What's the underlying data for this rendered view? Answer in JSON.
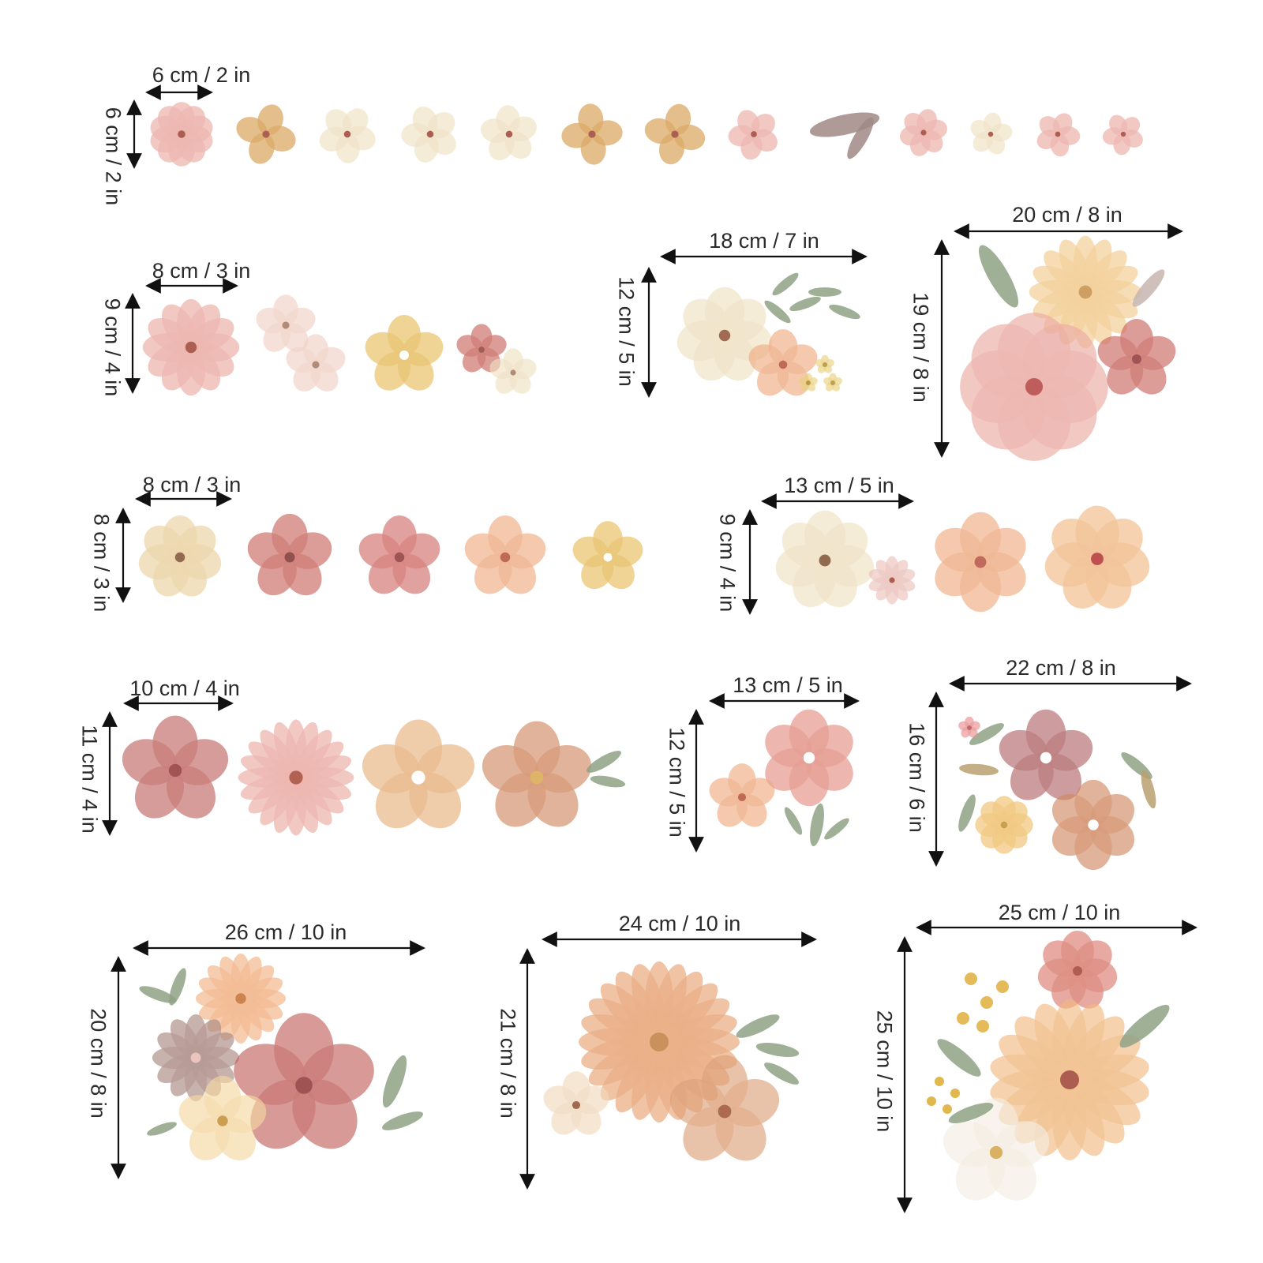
{
  "colors": {
    "text": "#2a2a2a",
    "blush": "#eba9a2",
    "rose": "#c8645e",
    "mustard": "#d59a4a",
    "cream": "#eee0c0",
    "peach": "#eeaa80",
    "terracotta": "#d08860",
    "sage": "#8fa285",
    "yellow": "#e5bb5a"
  },
  "dimensions": [
    {
      "width": "6 cm / 2 in",
      "height": "6 cm / 2 in"
    },
    {
      "width": "8 cm / 3 in",
      "height": "9 cm / 4 in"
    },
    {
      "width": "18 cm / 7 in",
      "height": "12 cm / 5 in"
    },
    {
      "width": "20 cm / 8 in",
      "height": "19 cm / 8 in"
    },
    {
      "width": "8 cm / 3 in",
      "height": "8 cm / 3 in"
    },
    {
      "width": "13 cm / 5 in",
      "height": "9 cm / 4 in"
    },
    {
      "width": "10 cm / 4 in",
      "height": "11 cm / 4 in"
    },
    {
      "width": "13 cm / 5 in",
      "height": "12 cm / 5 in"
    },
    {
      "width": "22 cm / 8 in",
      "height": "16 cm / 6 in"
    },
    {
      "width": "26 cm / 10 in",
      "height": "20 cm / 8 in"
    },
    {
      "width": "24 cm / 10 in",
      "height": "21 cm / 8 in"
    },
    {
      "width": "25 cm / 10 in",
      "height": "25 cm / 10 in"
    }
  ]
}
